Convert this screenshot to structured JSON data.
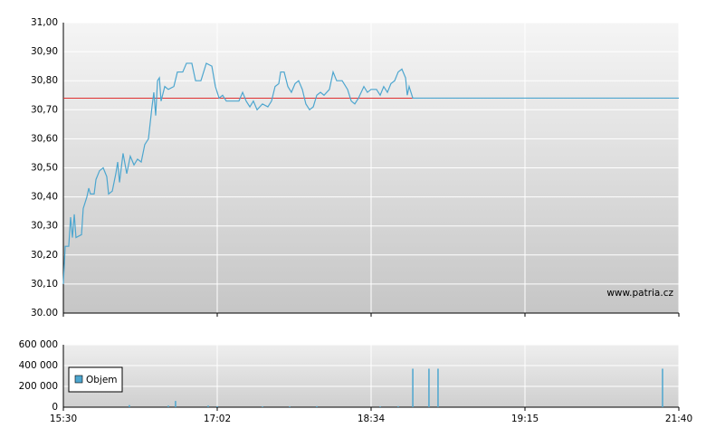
{
  "chart_data": [
    {
      "type": "line",
      "color": "#4da6cf",
      "ref_line": 30.74,
      "ref_color": "#e03030",
      "watermark": "www.patria.cz",
      "ylim": [
        30.0,
        31.0
      ],
      "yticks": [
        {
          "value": 30.0,
          "label": "30.00"
        },
        {
          "value": 30.1,
          "label": "30,10"
        },
        {
          "value": 30.2,
          "label": "30,20"
        },
        {
          "value": 30.3,
          "label": "30,30"
        },
        {
          "value": 30.4,
          "label": "30,40"
        },
        {
          "value": 30.5,
          "label": "30,50"
        },
        {
          "value": 30.6,
          "label": "30,60"
        },
        {
          "value": 30.7,
          "label": "30,70"
        },
        {
          "value": 30.8,
          "label": "30,80"
        },
        {
          "value": 30.9,
          "label": "30,90"
        },
        {
          "value": 31.0,
          "label": "31,00"
        }
      ],
      "xlim": [
        0,
        4
      ],
      "grid": true,
      "x": [
        0,
        0.012,
        0.035,
        0.047,
        0.059,
        0.071,
        0.082,
        0.118,
        0.129,
        0.153,
        0.165,
        0.176,
        0.2,
        0.212,
        0.235,
        0.259,
        0.282,
        0.294,
        0.318,
        0.341,
        0.353,
        0.365,
        0.388,
        0.412,
        0.435,
        0.459,
        0.482,
        0.506,
        0.529,
        0.553,
        0.576,
        0.588,
        0.6,
        0.612,
        0.624,
        0.635,
        0.659,
        0.682,
        0.718,
        0.741,
        0.776,
        0.8,
        0.835,
        0.859,
        0.894,
        0.929,
        0.965,
        0.988,
        1.012,
        1.035,
        1.059,
        1.094,
        1.141,
        1.165,
        1.188,
        1.212,
        1.235,
        1.259,
        1.294,
        1.329,
        1.353,
        1.376,
        1.4,
        1.412,
        1.435,
        1.459,
        1.482,
        1.506,
        1.529,
        1.553,
        1.576,
        1.6,
        1.624,
        1.647,
        1.671,
        1.694,
        1.729,
        1.753,
        1.776,
        1.812,
        1.847,
        1.871,
        1.894,
        1.918,
        1.953,
        1.976,
        2,
        2.035,
        2.059,
        2.082,
        2.106,
        2.129,
        2.153,
        2.176,
        2.2,
        2.224,
        2.235,
        2.247,
        2.259,
        2.271,
        4
      ],
      "values": [
        30.1,
        30.23,
        30.23,
        30.33,
        30.26,
        30.34,
        30.26,
        30.27,
        30.36,
        30.4,
        30.43,
        30.41,
        30.41,
        30.46,
        30.49,
        30.5,
        30.47,
        30.41,
        30.42,
        30.48,
        30.52,
        30.45,
        30.55,
        30.48,
        30.54,
        30.51,
        30.53,
        30.52,
        30.58,
        30.6,
        30.71,
        30.76,
        30.68,
        30.8,
        30.81,
        30.73,
        30.78,
        30.77,
        30.78,
        30.83,
        30.83,
        30.86,
        30.86,
        30.8,
        30.8,
        30.86,
        30.85,
        30.78,
        30.74,
        30.75,
        30.73,
        30.73,
        30.73,
        30.76,
        30.73,
        30.71,
        30.73,
        30.7,
        30.72,
        30.71,
        30.73,
        30.78,
        30.79,
        30.83,
        30.83,
        30.78,
        30.76,
        30.79,
        30.8,
        30.77,
        30.72,
        30.7,
        30.71,
        30.75,
        30.76,
        30.75,
        30.77,
        30.83,
        30.8,
        30.8,
        30.77,
        30.73,
        30.72,
        30.74,
        30.78,
        30.76,
        30.77,
        30.77,
        30.75,
        30.78,
        30.76,
        30.79,
        30.8,
        30.83,
        30.84,
        30.81,
        30.75,
        30.78,
        30.76,
        30.74,
        30.74
      ]
    },
    {
      "type": "bar",
      "legend": "Objem",
      "color": "#4da6cf",
      "ylim": [
        0,
        600000
      ],
      "yticks": [
        {
          "value": 0,
          "label": "0"
        },
        {
          "value": 200000,
          "label": "200 000"
        },
        {
          "value": 400000,
          "label": "400 000"
        },
        {
          "value": 600000,
          "label": "600 000"
        }
      ],
      "xlim": [
        0,
        4
      ],
      "xticks": [
        {
          "value": 0,
          "label": "15:30"
        },
        {
          "value": 1,
          "label": "17:02"
        },
        {
          "value": 2,
          "label": "18:34"
        },
        {
          "value": 3,
          "label": "19:15"
        },
        {
          "value": 4,
          "label": "21:40"
        }
      ],
      "x": [
        0.429,
        0.682,
        0.729,
        0.941,
        1,
        1.294,
        1.471,
        1.647,
        2.059,
        2.176,
        2.271,
        2.376,
        2.435,
        3.894
      ],
      "values": [
        20000,
        15000,
        60000,
        15000,
        10000,
        8000,
        8000,
        10000,
        8000,
        10000,
        370000,
        370000,
        370000,
        370000
      ]
    }
  ]
}
